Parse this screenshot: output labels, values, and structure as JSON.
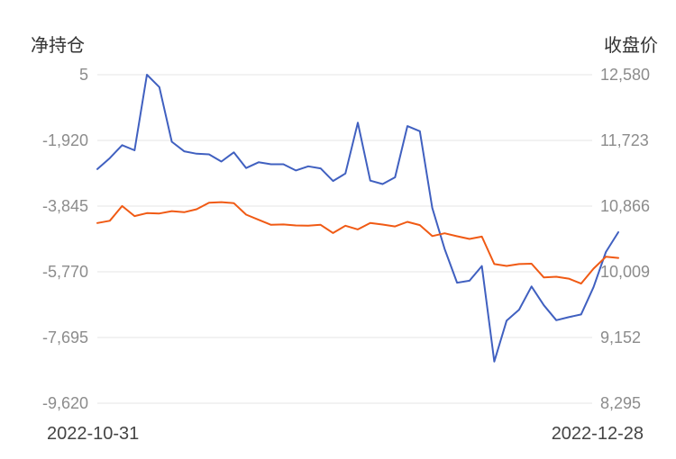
{
  "chart_data": {
    "type": "line",
    "left_axis_title": "净持仓",
    "right_axis_title": "收盘价",
    "left_ticks": [
      "5",
      "-1,920",
      "-3,845",
      "-5,770",
      "-7,695",
      "-9,620"
    ],
    "right_ticks": [
      "12,580",
      "11,723",
      "10,866",
      "10,009",
      "9,152",
      "8,295"
    ],
    "left_range": [
      -9620,
      5
    ],
    "right_range": [
      8295,
      12580
    ],
    "x_start_label": "2022-10-31",
    "x_end_label": "2022-12-28",
    "grid": true,
    "colors": {
      "net_position": "#4060c0",
      "close_price": "#f05a14",
      "grid": "#e6e6e6"
    },
    "series": [
      {
        "axis": "left",
        "color_key": "net_position",
        "values": [
          -2760,
          -2440,
          -2060,
          -2210,
          5,
          -360,
          -1960,
          -2240,
          -2310,
          -2330,
          -2540,
          -2270,
          -2730,
          -2560,
          -2620,
          -2620,
          -2800,
          -2680,
          -2740,
          -3110,
          -2890,
          -1400,
          -3100,
          -3200,
          -3000,
          -1500,
          -1650,
          -3900,
          -5100,
          -6090,
          -6030,
          -5600,
          -8400,
          -7200,
          -6880,
          -6200,
          -6750,
          -7190,
          -7100,
          -7020,
          -6220,
          -5190,
          -4610
        ]
      },
      {
        "axis": "right",
        "color_key": "close_price",
        "values": [
          10645,
          10675,
          10867,
          10736,
          10775,
          10770,
          10800,
          10786,
          10825,
          10910,
          10918,
          10905,
          10755,
          10688,
          10622,
          10626,
          10614,
          10610,
          10622,
          10515,
          10610,
          10562,
          10647,
          10625,
          10601,
          10660,
          10618,
          10475,
          10512,
          10473,
          10437,
          10468,
          10110,
          10085,
          10110,
          10115,
          9935,
          9945,
          9920,
          9855,
          10050,
          10205,
          10190
        ]
      }
    ]
  }
}
